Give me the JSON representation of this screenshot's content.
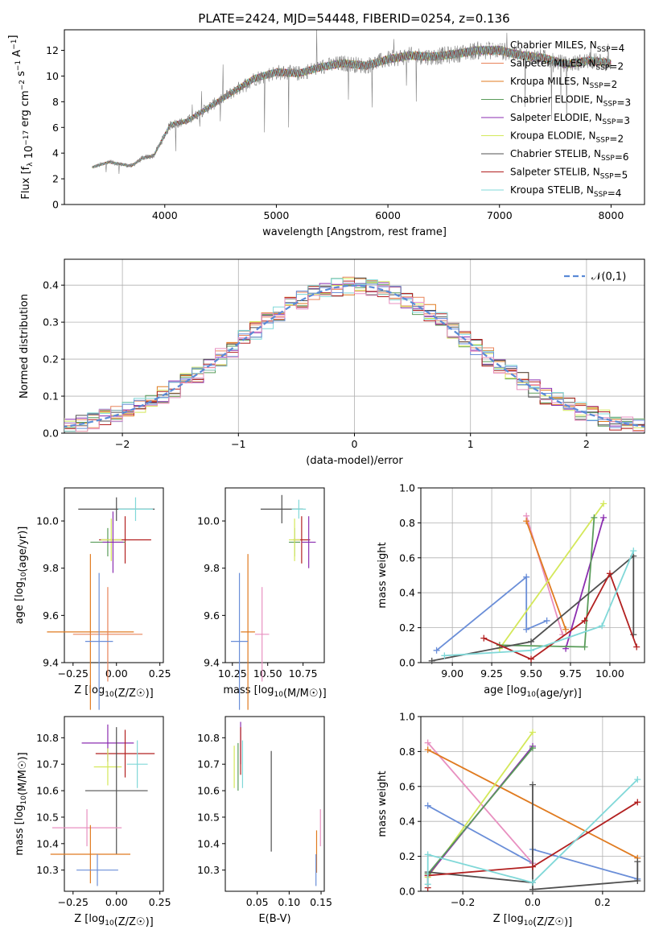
{
  "figure_title": "PLATE=2424, MJD=54448, FIBERID=0254, z=0.136",
  "series_colors": [
    "#ffffff",
    "#e8835a",
    "#e07b20",
    "#5a9c5a",
    "#8b2eb0",
    "#d4e85a",
    "#505050",
    "#b22020",
    "#80d8d8"
  ],
  "chart_data": [
    {
      "id": "spectrum",
      "type": "line",
      "title": "PLATE=2424, MJD=54448, FIBERID=0254, z=0.136",
      "xlabel": "wavelength [Angstrom, rest frame]",
      "ylabel": "Flux [f_λ 10^-17 erg cm^-2 s^-1 A^-1]",
      "xlim": [
        3100,
        8300
      ],
      "ylim": [
        0,
        13.6
      ],
      "xticks": [
        4000,
        5000,
        6000,
        7000,
        8000
      ],
      "yticks": [
        0,
        2,
        4,
        6,
        8,
        10,
        12
      ],
      "data_color": "#808080",
      "data_anchors": [
        [
          3350,
          2.9
        ],
        [
          3500,
          3.3
        ],
        [
          3700,
          3.0
        ],
        [
          3800,
          3.6
        ],
        [
          3900,
          3.8
        ],
        [
          4050,
          6.2
        ],
        [
          4200,
          6.5
        ],
        [
          4400,
          7.6
        ],
        [
          4600,
          8.7
        ],
        [
          4800,
          9.8
        ],
        [
          5000,
          10.3
        ],
        [
          5200,
          10.2
        ],
        [
          5400,
          10.7
        ],
        [
          5600,
          11.0
        ],
        [
          5800,
          10.8
        ],
        [
          6000,
          11.3
        ],
        [
          6200,
          11.6
        ],
        [
          6400,
          11.5
        ],
        [
          6600,
          11.7
        ],
        [
          6800,
          12.0
        ],
        [
          7000,
          12.0
        ],
        [
          7200,
          11.6
        ],
        [
          7400,
          11.4
        ],
        [
          7600,
          10.9
        ],
        [
          7800,
          11.2
        ],
        [
          8000,
          11.0
        ]
      ],
      "series": [
        {
          "name": "Chabrier MILES, N_SSP=4",
          "color": "#ffffff"
        },
        {
          "name": "Salpeter MILES, N_SSP=2",
          "color": "#e8835a"
        },
        {
          "name": "Kroupa MILES, N_SSP=2",
          "color": "#e07b20"
        },
        {
          "name": "Chabrier ELODIE, N_SSP=3",
          "color": "#5a9c5a"
        },
        {
          "name": "Salpeter ELODIE, N_SSP=3",
          "color": "#8b2eb0"
        },
        {
          "name": "Kroupa ELODIE, N_SSP=2",
          "color": "#d4e85a"
        },
        {
          "name": "Chabrier STELIB, N_SSP=6",
          "color": "#505050"
        },
        {
          "name": "Salpeter STELIB, N_SSP=5",
          "color": "#b22020"
        },
        {
          "name": "Kroupa STELIB, N_SSP=4",
          "color": "#80d8d8"
        }
      ],
      "legend": "right"
    },
    {
      "id": "residuals",
      "type": "line",
      "xlabel": "(data-model)/error",
      "ylabel": "Normed distribution",
      "xlim": [
        -2.5,
        2.5
      ],
      "ylim": [
        0,
        0.47
      ],
      "xticks": [
        -2,
        -1,
        0,
        1,
        2
      ],
      "yticks": [
        0.0,
        0.1,
        0.2,
        0.3,
        0.4
      ],
      "grid": true,
      "reference": {
        "name": "𝒩(0,1)",
        "mean": 0,
        "sigma": 1,
        "color": "#5a8ad6"
      },
      "bin_width": 0.1,
      "hist_colors": [
        "#e8835a",
        "#e07b20",
        "#5a9c5a",
        "#8b2eb0",
        "#d4e85a",
        "#505050",
        "#b22020",
        "#80d8d8",
        "#6a8ed8",
        "#e890c0"
      ],
      "legend": "top-right"
    },
    {
      "id": "age_vs_Z",
      "type": "scatter",
      "xlabel": "Z [log10(Z/Z☉)]",
      "ylabel": "age [log10(age/yr)]",
      "xlim": [
        -0.3,
        0.27
      ],
      "ylim": [
        9.4,
        10.14
      ],
      "xticks": [
        -0.25,
        0.0,
        0.25
      ],
      "yticks": [
        9.4,
        9.6,
        9.8,
        10.0
      ],
      "points": [
        {
          "color": "#505050",
          "x": 0.0,
          "xerr": 0.22,
          "y": 10.05,
          "yerr": 0.05
        },
        {
          "color": "#80d8d8",
          "x": 0.11,
          "xerr": 0.1,
          "y": 10.05,
          "yerr": 0.05
        },
        {
          "color": "#b22020",
          "x": 0.05,
          "xerr": 0.15,
          "y": 9.92,
          "yerr": 0.1
        },
        {
          "color": "#5a9c5a",
          "x": -0.05,
          "xerr": 0.1,
          "y": 9.91,
          "yerr": 0.06
        },
        {
          "color": "#d4e85a",
          "x": -0.03,
          "xerr": 0.06,
          "y": 9.92,
          "yerr": 0.09
        },
        {
          "color": "#8b2eb0",
          "x": -0.02,
          "xerr": 0.06,
          "y": 9.91,
          "yerr": 0.13
        },
        {
          "color": "#e07b20",
          "x": -0.15,
          "xerr": 0.25,
          "y": 9.53,
          "yerr": 0.33
        },
        {
          "color": "#e8835a",
          "x": -0.05,
          "xerr": 0.2,
          "y": 9.52,
          "yerr": 0.2
        },
        {
          "color": "#6a8ed8",
          "x": -0.1,
          "xerr": 0.08,
          "y": 9.49,
          "yerr": 0.29
        }
      ]
    },
    {
      "id": "age_vs_mass",
      "type": "scatter",
      "xlabel": "mass [log10(M/M☉)]",
      "ylabel": "",
      "xlim": [
        10.2,
        10.9
      ],
      "ylim": [
        9.4,
        10.14
      ],
      "xticks": [
        10.25,
        10.5,
        10.75
      ],
      "yticks": [
        9.4,
        9.6,
        9.8,
        10.0
      ],
      "points": [
        {
          "color": "#505050",
          "x": 10.6,
          "xerr": 0.15,
          "y": 10.05,
          "yerr": 0.06
        },
        {
          "color": "#80d8d8",
          "x": 10.72,
          "xerr": 0.05,
          "y": 10.05,
          "yerr": 0.04
        },
        {
          "color": "#b22020",
          "x": 10.74,
          "xerr": 0.06,
          "y": 9.92,
          "yerr": 0.1
        },
        {
          "color": "#5a9c5a",
          "x": 10.69,
          "xerr": 0.04,
          "y": 9.91,
          "yerr": 0.06
        },
        {
          "color": "#d4e85a",
          "x": 10.69,
          "xerr": 0.04,
          "y": 9.92,
          "yerr": 0.09
        },
        {
          "color": "#8b2eb0",
          "x": 10.79,
          "xerr": 0.05,
          "y": 9.91,
          "yerr": 0.11
        },
        {
          "color": "#e07b20",
          "x": 10.36,
          "xerr": 0.05,
          "y": 9.53,
          "yerr": 0.33
        },
        {
          "color": "#e890c0",
          "x": 10.46,
          "xerr": 0.05,
          "y": 9.52,
          "yerr": 0.2
        },
        {
          "color": "#6a8ed8",
          "x": 10.3,
          "xerr": 0.06,
          "y": 9.49,
          "yerr": 0.29
        }
      ]
    },
    {
      "id": "weight_vs_age",
      "type": "line",
      "xlabel": "age [log10(age/yr)]",
      "ylabel": "mass weight",
      "xlim": [
        8.8,
        10.22
      ],
      "ylim": [
        0,
        1.0
      ],
      "xticks": [
        9.0,
        9.25,
        9.5,
        9.75,
        10.0
      ],
      "yticks": [
        0.0,
        0.2,
        0.4,
        0.6,
        0.8,
        1.0
      ],
      "grid": true,
      "series": [
        {
          "color": "#6a8ed8",
          "x": [
            8.9,
            9.47,
            9.47,
            9.6
          ],
          "y": [
            0.07,
            0.49,
            0.19,
            0.24
          ]
        },
        {
          "color": "#e890c0",
          "x": [
            9.47,
            9.7
          ],
          "y": [
            0.84,
            0.16
          ]
        },
        {
          "color": "#e07b20",
          "x": [
            9.47,
            9.72
          ],
          "y": [
            0.81,
            0.19
          ]
        },
        {
          "color": "#d4e85a",
          "x": [
            9.3,
            9.96
          ],
          "y": [
            0.08,
            0.91
          ]
        },
        {
          "color": "#8b2eb0",
          "x": [
            9.72,
            9.96
          ],
          "y": [
            0.08,
            0.83
          ]
        },
        {
          "color": "#5a9c5a",
          "x": [
            9.3,
            9.84,
            9.9
          ],
          "y": [
            0.1,
            0.09,
            0.83
          ]
        },
        {
          "color": "#505050",
          "x": [
            8.87,
            9.5,
            10.15,
            10.15
          ],
          "y": [
            0.01,
            0.12,
            0.61,
            0.16
          ]
        },
        {
          "color": "#b22020",
          "x": [
            9.2,
            9.5,
            9.84,
            10.0,
            10.17
          ],
          "y": [
            0.14,
            0.02,
            0.24,
            0.51,
            0.09
          ]
        },
        {
          "color": "#80d8d8",
          "x": [
            8.95,
            9.5,
            9.95,
            10.15
          ],
          "y": [
            0.04,
            0.07,
            0.21,
            0.64
          ]
        }
      ]
    },
    {
      "id": "mass_vs_Z",
      "type": "scatter",
      "xlabel": "Z [log10(Z/Z☉)]",
      "ylabel": "mass [log10(M/M☉)]",
      "xlim": [
        -0.3,
        0.27
      ],
      "ylim": [
        10.22,
        10.88
      ],
      "xticks": [
        -0.25,
        0.0,
        0.25
      ],
      "yticks": [
        10.3,
        10.4,
        10.5,
        10.6,
        10.7,
        10.8
      ],
      "points": [
        {
          "color": "#8b2eb0",
          "x": -0.05,
          "xerr": 0.15,
          "y": 10.78,
          "yerr": 0.07
        },
        {
          "color": "#b22020",
          "x": 0.05,
          "xerr": 0.17,
          "y": 10.74,
          "yerr": 0.09
        },
        {
          "color": "#80d8d8",
          "x": 0.12,
          "xerr": 0.06,
          "y": 10.7,
          "yerr": 0.09
        },
        {
          "color": "#d4e85a",
          "x": -0.05,
          "xerr": 0.08,
          "y": 10.69,
          "yerr": 0.07
        },
        {
          "color": "#505050",
          "x": 0.0,
          "xerr": 0.18,
          "y": 10.6,
          "yerr": 0.24
        },
        {
          "color": "#e890c0",
          "x": -0.17,
          "xerr": 0.2,
          "y": 10.46,
          "yerr": 0.07
        },
        {
          "color": "#e07b20",
          "x": -0.15,
          "xerr": 0.23,
          "y": 10.36,
          "yerr": 0.11
        },
        {
          "color": "#6a8ed8",
          "x": -0.11,
          "xerr": 0.12,
          "y": 10.3,
          "yerr": 0.06
        }
      ]
    },
    {
      "id": "mass_vs_EBV",
      "type": "scatter",
      "xlabel": "E(B-V)",
      "ylabel": "",
      "xlim": [
        0.0,
        0.155
      ],
      "ylim": [
        10.22,
        10.88
      ],
      "xticks": [
        0.05,
        0.1,
        0.15
      ],
      "yticks": [
        10.3,
        10.4,
        10.5,
        10.6,
        10.7,
        10.8
      ],
      "points": [
        {
          "color": "#8b2eb0",
          "x": 0.024,
          "xerr": 0.0,
          "y": 10.78,
          "yerr": 0.08
        },
        {
          "color": "#b22020",
          "x": 0.024,
          "xerr": 0.0,
          "y": 10.75,
          "yerr": 0.09
        },
        {
          "color": "#80d8d8",
          "x": 0.027,
          "xerr": 0.0,
          "y": 10.7,
          "yerr": 0.09
        },
        {
          "color": "#d4e85a",
          "x": 0.014,
          "xerr": 0.0,
          "y": 10.69,
          "yerr": 0.08
        },
        {
          "color": "#5a9c5a",
          "x": 0.02,
          "xerr": 0.0,
          "y": 10.69,
          "yerr": 0.09
        },
        {
          "color": "#505050",
          "x": 0.072,
          "xerr": 0.0,
          "y": 10.56,
          "yerr": 0.19
        },
        {
          "color": "#e890c0",
          "x": 0.149,
          "xerr": 0.0,
          "y": 10.46,
          "yerr": 0.07
        },
        {
          "color": "#e07b20",
          "x": 0.143,
          "xerr": 0.0,
          "y": 10.37,
          "yerr": 0.08
        },
        {
          "color": "#6a8ed8",
          "x": 0.142,
          "xerr": 0.0,
          "y": 10.3,
          "yerr": 0.06
        }
      ]
    },
    {
      "id": "weight_vs_Z",
      "type": "line",
      "xlabel": "Z [log10(Z/Z☉)]",
      "ylabel": "mass weight",
      "xlim": [
        -0.32,
        0.32
      ],
      "ylim": [
        0,
        1.0
      ],
      "xticks": [
        -0.2,
        0.0,
        0.2
      ],
      "yticks": [
        0.0,
        0.2,
        0.4,
        0.6,
        0.8,
        1.0
      ],
      "grid": true,
      "series": [
        {
          "color": "#6a8ed8",
          "x": [
            -0.3,
            0.0,
            0.0,
            0.3
          ],
          "y": [
            0.49,
            0.16,
            0.24,
            0.07
          ]
        },
        {
          "color": "#e890c0",
          "x": [
            -0.3,
            0.0
          ],
          "y": [
            0.85,
            0.16
          ]
        },
        {
          "color": "#e07b20",
          "x": [
            -0.3,
            0.3
          ],
          "y": [
            0.81,
            0.19
          ]
        },
        {
          "color": "#d4e85a",
          "x": [
            -0.3,
            0.0
          ],
          "y": [
            0.08,
            0.91
          ]
        },
        {
          "color": "#8b2eb0",
          "x": [
            -0.3,
            0.0
          ],
          "y": [
            0.09,
            0.83
          ]
        },
        {
          "color": "#5a9c5a",
          "x": [
            -0.3,
            0.0
          ],
          "y": [
            0.1,
            0.82
          ]
        },
        {
          "color": "#505050",
          "x": [
            -0.3,
            0.0,
            0.0,
            0.0,
            0.3,
            0.3
          ],
          "y": [
            0.11,
            0.05,
            0.61,
            0.01,
            0.06,
            0.17
          ]
        },
        {
          "color": "#b22020",
          "x": [
            -0.3,
            -0.3,
            0.0,
            0.3
          ],
          "y": [
            0.02,
            0.09,
            0.14,
            0.51
          ]
        },
        {
          "color": "#80d8d8",
          "x": [
            -0.3,
            -0.3,
            0.0,
            0.3
          ],
          "y": [
            0.04,
            0.21,
            0.05,
            0.64
          ]
        }
      ]
    }
  ]
}
